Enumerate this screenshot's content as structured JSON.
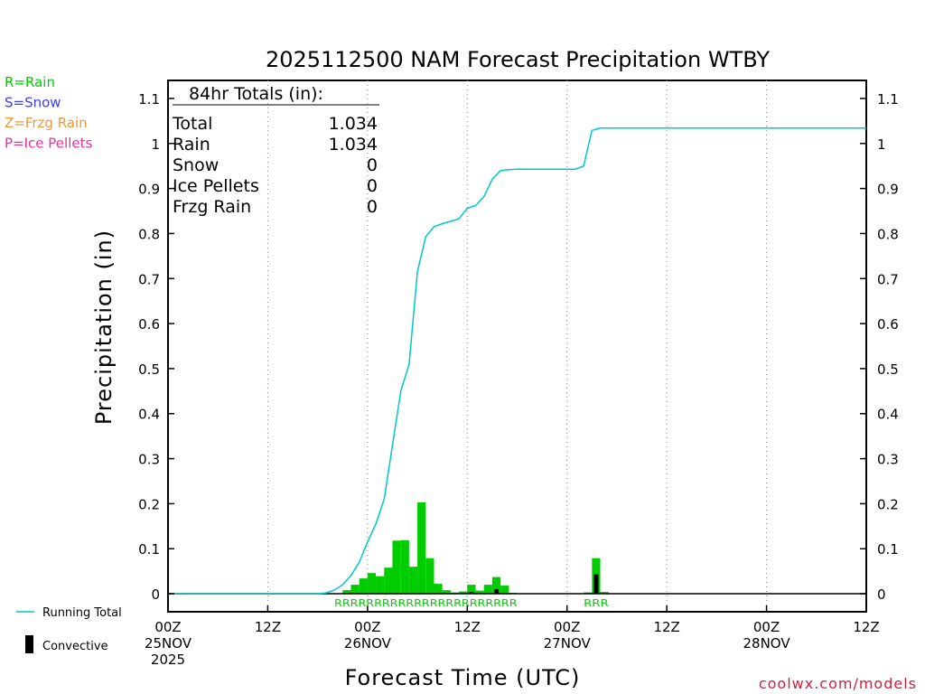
{
  "chart_data": {
    "type": "bar",
    "title": "2025112500 NAM Forecast Precipitation WTBY",
    "xlabel": "Forecast Time (UTC)",
    "ylabel": "Precipitation (in)",
    "xlim_hours": [
      0,
      84
    ],
    "ylim": [
      -0.04,
      1.14
    ],
    "y_ticks": [
      "0",
      "0.1",
      "0.2",
      "0.3",
      "0.4",
      "0.5",
      "0.6",
      "0.7",
      "0.8",
      "0.9",
      "1",
      "1.1"
    ],
    "x_ticks": [
      {
        "hour": 0,
        "lines": [
          "00Z",
          "25NOV",
          "2025"
        ]
      },
      {
        "hour": 12,
        "lines": [
          "12Z"
        ]
      },
      {
        "hour": 24,
        "lines": [
          "00Z",
          "26NOV"
        ]
      },
      {
        "hour": 36,
        "lines": [
          "12Z"
        ]
      },
      {
        "hour": 48,
        "lines": [
          "00Z",
          "27NOV"
        ]
      },
      {
        "hour": 60,
        "lines": [
          "12Z"
        ]
      },
      {
        "hour": 72,
        "lines": [
          "00Z",
          "28NOV"
        ]
      },
      {
        "hour": 84,
        "lines": [
          "12Z"
        ]
      }
    ],
    "grid": "vertical dotted at 12-hour intervals",
    "series": [
      {
        "name": "Hourly Precipitation (Rain)",
        "color": "#00cc00",
        "hours": [
          21,
          22,
          23,
          24,
          25,
          26,
          27,
          28,
          29,
          30,
          31,
          32,
          33,
          34,
          35,
          36,
          37,
          38,
          39,
          40,
          41,
          50,
          51,
          52
        ],
        "values": [
          0.008,
          0.02,
          0.034,
          0.046,
          0.039,
          0.058,
          0.118,
          0.119,
          0.06,
          0.203,
          0.079,
          0.022,
          0.008,
          0.003,
          0.005,
          0.02,
          0.007,
          0.02,
          0.037,
          0.018,
          0.002,
          0.003,
          0.079,
          0.004
        ]
      },
      {
        "name": "Convective",
        "color": "#000000",
        "hours": [
          36,
          39,
          51
        ],
        "values": [
          0.004,
          0.01,
          0.043
        ]
      },
      {
        "name": "Running Total",
        "color": "#00c8c8",
        "hours": [
          0,
          18,
          19,
          20,
          21,
          22,
          23,
          24,
          25,
          26,
          27,
          28,
          29,
          30,
          31,
          32,
          33,
          34,
          35,
          36,
          37,
          38,
          39,
          40,
          41,
          42,
          43,
          44,
          45,
          46,
          47,
          48,
          49,
          50,
          51,
          52,
          53,
          84
        ],
        "values": [
          0,
          0,
          0.002,
          0.008,
          0.02,
          0.04,
          0.07,
          0.115,
          0.155,
          0.21,
          0.33,
          0.45,
          0.51,
          0.715,
          0.793,
          0.815,
          0.822,
          0.827,
          0.833,
          0.856,
          0.862,
          0.882,
          0.92,
          0.94,
          0.942,
          0.943,
          0.943,
          0.943,
          0.943,
          0.943,
          0.943,
          0.943,
          0.943,
          0.95,
          1.029,
          1.034,
          1.034,
          1.034
        ]
      }
    ],
    "precip_type_marks": [
      {
        "text": "RRRRRRRRRRRRRRRRRRRRRRR",
        "from_hour": 20,
        "to_hour": 42
      },
      {
        "text": "RRR",
        "from_hour": 50,
        "to_hour": 53
      }
    ]
  },
  "totals": {
    "heading": "84hr Totals (in):",
    "rows": [
      {
        "label": "Total",
        "value": "1.034"
      },
      {
        "label": "Rain",
        "value": "1.034"
      },
      {
        "label": "Snow",
        "value": "0"
      },
      {
        "label": "Ice Pellets",
        "value": "0"
      },
      {
        "label": "Frzg Rain",
        "value": "0"
      }
    ]
  },
  "type_legend": [
    {
      "text": "R=Rain",
      "color": "#00cc00"
    },
    {
      "text": "S=Snow",
      "color": "#3c3cff"
    },
    {
      "text": "Z=Frzg Rain",
      "color": "#f0963c"
    },
    {
      "text": "P=Ice Pellets",
      "color": "#e6329b"
    }
  ],
  "series_legend": {
    "running_total": "Running Total",
    "convective": "Convective"
  },
  "credit": {
    "text": "coolwx.com/models",
    "color": "#d21e3c"
  }
}
